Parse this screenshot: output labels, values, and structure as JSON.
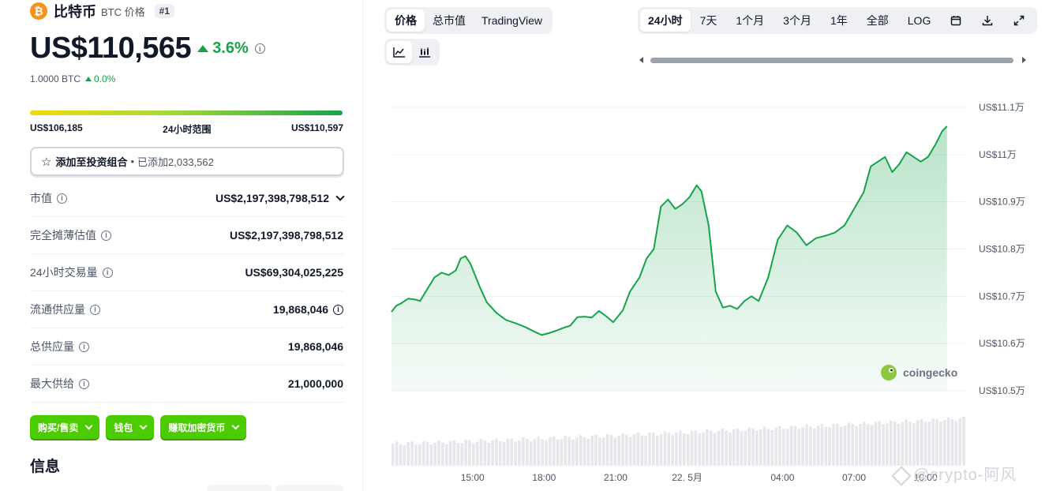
{
  "coin": {
    "logo_glyph": "₿",
    "name": "比特币",
    "symbol_label": "BTC 价格",
    "rank": "#1",
    "price": "US$110,565",
    "change_24h": "3.6%",
    "btc_value": "1.0000 BTC",
    "btc_change": "0.0%",
    "brand_color": "#f7931a",
    "positive_color": "#16a34a"
  },
  "range_24h": {
    "low": "US$106,185",
    "label": "24小时范围",
    "high": "US$110,597"
  },
  "portfolio": {
    "label": "添加至投资组合",
    "separator": "•",
    "added": "已添加2,033,562"
  },
  "stats": [
    {
      "label": "市值",
      "value": "US$2,197,398,798,512",
      "suffix": "chevron"
    },
    {
      "label": "完全摊薄估值",
      "value": "US$2,197,398,798,512",
      "suffix": ""
    },
    {
      "label": "24小时交易量",
      "value": "US$69,304,025,225",
      "suffix": ""
    },
    {
      "label": "流通供应量",
      "value": "19,868,046",
      "suffix": "info"
    },
    {
      "label": "总供应量",
      "value": "19,868,046",
      "suffix": ""
    },
    {
      "label": "最大供给",
      "value": "21,000,000",
      "suffix": ""
    }
  ],
  "action_buttons": [
    {
      "label": "购买/售卖"
    },
    {
      "label": "钱包"
    },
    {
      "label": "赚取加密货币"
    }
  ],
  "info_heading": "信息",
  "chart_tabs": [
    "价格",
    "总市值",
    "TradingView"
  ],
  "chart_type_icons": [
    "line-chart-icon",
    "candlestick-icon"
  ],
  "range_tabs": [
    "24小时",
    "7天",
    "1个月",
    "3个月",
    "1年",
    "全部",
    "LOG"
  ],
  "range_tools": [
    "calendar-icon",
    "download-icon",
    "expand-icon"
  ],
  "watermark_brand": "coingecko",
  "watermark_text": "@crypto-阿风",
  "accent_green": "#4bcc00",
  "chart_data": {
    "type": "area",
    "title": "",
    "xlabel": "",
    "ylabel": "",
    "y_unit": "US$",
    "ylim": [
      105000,
      111000
    ],
    "y_ticks": [
      {
        "value": 111000,
        "label": "US$11.1万"
      },
      {
        "value": 110000,
        "label": "US$11万"
      },
      {
        "value": 109000,
        "label": "US$10.9万"
      },
      {
        "value": 108000,
        "label": "US$10.8万"
      },
      {
        "value": 107000,
        "label": "US$10.7万"
      },
      {
        "value": 106000,
        "label": "US$10.6万"
      },
      {
        "value": 105000,
        "label": "US$10.5万"
      }
    ],
    "x_range": [
      -3.4,
      20.7
    ],
    "x_ticks": [
      {
        "value": 0,
        "label": "15:00"
      },
      {
        "value": 3,
        "label": "18:00"
      },
      {
        "value": 6,
        "label": "21:00"
      },
      {
        "value": 9,
        "label": "22. 5月"
      },
      {
        "value": 13,
        "label": "04:00"
      },
      {
        "value": 16,
        "label": "07:00"
      },
      {
        "value": 19,
        "label": "10:00"
      }
    ],
    "grid": true,
    "line_color": "#16a34a",
    "series": [
      {
        "values": [
          [
            -3.4,
            106670
          ],
          [
            -3.2,
            106800
          ],
          [
            -3.0,
            106850
          ],
          [
            -2.7,
            106950
          ],
          [
            -2.4,
            106930
          ],
          [
            -2.2,
            106900
          ],
          [
            -1.9,
            107150
          ],
          [
            -1.6,
            107400
          ],
          [
            -1.3,
            107500
          ],
          [
            -1.0,
            107450
          ],
          [
            -0.7,
            107550
          ],
          [
            -0.5,
            107800
          ],
          [
            -0.3,
            107850
          ],
          [
            -0.1,
            107700
          ],
          [
            0.3,
            107200
          ],
          [
            0.6,
            106870
          ],
          [
            1.0,
            106650
          ],
          [
            1.4,
            106500
          ],
          [
            1.8,
            106430
          ],
          [
            2.2,
            106350
          ],
          [
            2.6,
            106250
          ],
          [
            2.9,
            106180
          ],
          [
            3.2,
            106220
          ],
          [
            3.5,
            106270
          ],
          [
            3.8,
            106330
          ],
          [
            4.1,
            106380
          ],
          [
            4.4,
            106560
          ],
          [
            4.7,
            106570
          ],
          [
            5.0,
            106550
          ],
          [
            5.3,
            106690
          ],
          [
            5.6,
            106580
          ],
          [
            5.9,
            106450
          ],
          [
            6.3,
            106700
          ],
          [
            6.6,
            107100
          ],
          [
            7.0,
            107400
          ],
          [
            7.3,
            107800
          ],
          [
            7.6,
            108000
          ],
          [
            7.9,
            108900
          ],
          [
            8.2,
            109050
          ],
          [
            8.5,
            108850
          ],
          [
            8.8,
            108950
          ],
          [
            9.1,
            109100
          ],
          [
            9.4,
            109350
          ],
          [
            9.6,
            109220
          ],
          [
            9.9,
            108500
          ],
          [
            10.2,
            107100
          ],
          [
            10.5,
            106760
          ],
          [
            10.8,
            106800
          ],
          [
            11.1,
            106730
          ],
          [
            11.4,
            106900
          ],
          [
            11.7,
            107000
          ],
          [
            12.0,
            106900
          ],
          [
            12.4,
            107400
          ],
          [
            12.8,
            108200
          ],
          [
            13.2,
            108500
          ],
          [
            13.6,
            108350
          ],
          [
            14.0,
            108080
          ],
          [
            14.4,
            108230
          ],
          [
            14.8,
            108280
          ],
          [
            15.2,
            108350
          ],
          [
            15.6,
            108500
          ],
          [
            16.0,
            108850
          ],
          [
            16.4,
            109200
          ],
          [
            16.7,
            109750
          ],
          [
            17.0,
            109850
          ],
          [
            17.3,
            109950
          ],
          [
            17.6,
            109630
          ],
          [
            17.9,
            109800
          ],
          [
            18.2,
            110050
          ],
          [
            18.5,
            109950
          ],
          [
            18.8,
            109850
          ],
          [
            19.1,
            109950
          ],
          [
            19.4,
            110200
          ],
          [
            19.7,
            110500
          ],
          [
            19.9,
            110600
          ]
        ]
      }
    ],
    "volume": {
      "bar_count": 150,
      "values_relative": "rising from 0.43 to 0.92"
    }
  }
}
